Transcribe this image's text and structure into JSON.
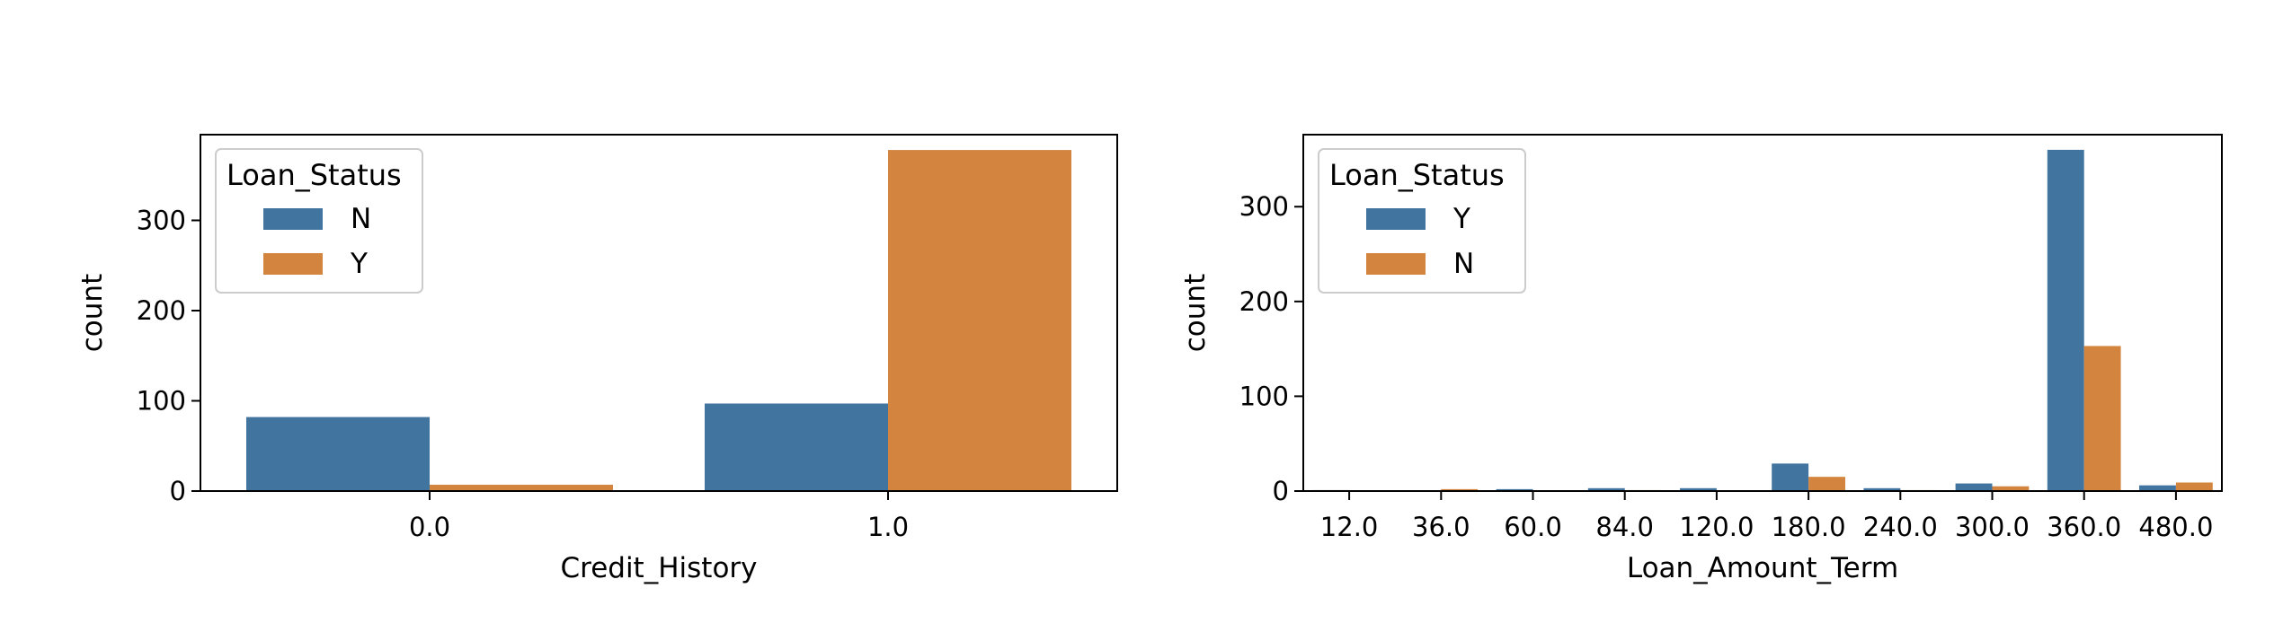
{
  "chart_data": [
    {
      "type": "bar",
      "xlabel": "Credit_History",
      "ylabel": "count",
      "ylim": [
        0,
        395
      ],
      "yticks": [
        0,
        100,
        200,
        300
      ],
      "categories": [
        "0.0",
        "1.0"
      ],
      "series": [
        {
          "name": "N",
          "color": "#4274a0",
          "values": [
            82,
            97
          ]
        },
        {
          "name": "Y",
          "color": "#d3843e",
          "values": [
            7,
            378
          ]
        }
      ],
      "legend": {
        "title": "Loan_Status",
        "placement": "top-left"
      },
      "grid": false
    },
    {
      "type": "bar",
      "xlabel": "Loan_Amount_Term",
      "ylabel": "count",
      "ylim": [
        0,
        376
      ],
      "yticks": [
        0,
        100,
        200,
        300
      ],
      "categories": [
        "12.0",
        "36.0",
        "60.0",
        "84.0",
        "120.0",
        "180.0",
        "240.0",
        "300.0",
        "360.0",
        "480.0"
      ],
      "series": [
        {
          "name": "Y",
          "color": "#4274a0",
          "values": [
            1,
            0,
            2,
            3,
            3,
            29,
            3,
            8,
            360,
            6
          ]
        },
        {
          "name": "N",
          "color": "#d3843e",
          "values": [
            0,
            2,
            0,
            1,
            0,
            15,
            1,
            5,
            153,
            9
          ]
        }
      ],
      "legend": {
        "title": "Loan_Status",
        "placement": "top-left"
      },
      "grid": false
    }
  ]
}
